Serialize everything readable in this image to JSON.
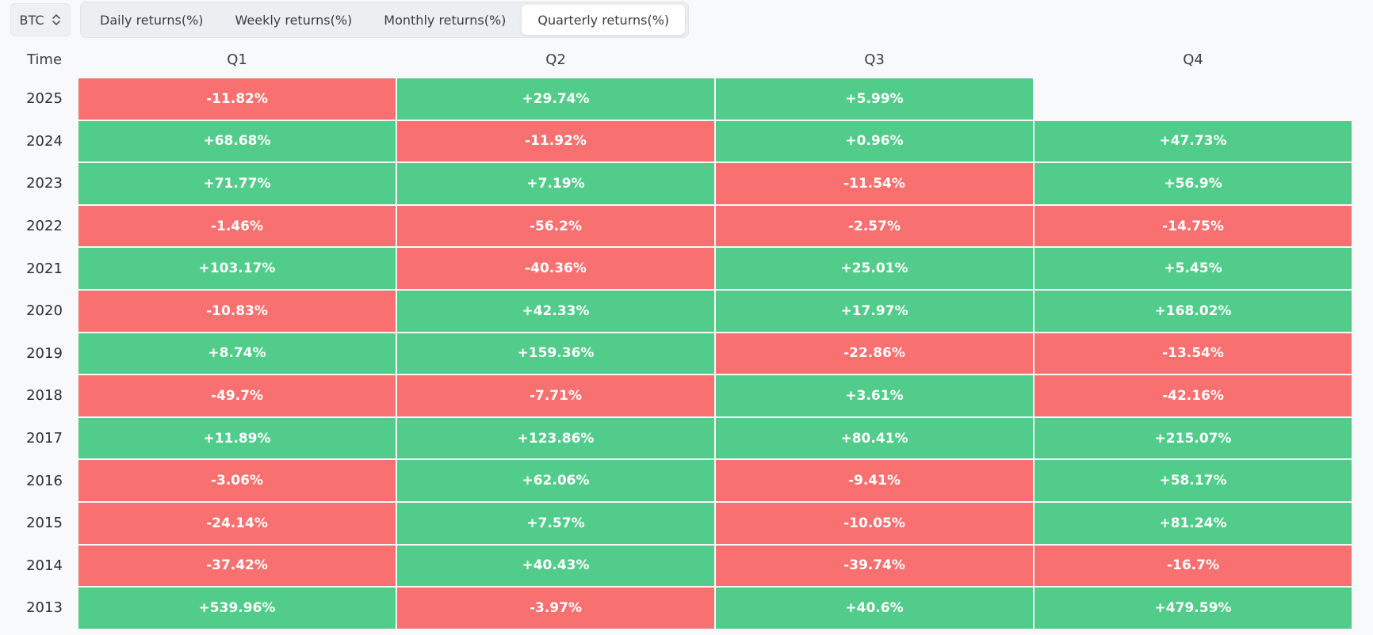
{
  "coin_selector": {
    "value": "BTC"
  },
  "tabs": [
    {
      "label": "Daily returns(%)",
      "active": false
    },
    {
      "label": "Weekly returns(%)",
      "active": false
    },
    {
      "label": "Monthly returns(%)",
      "active": false
    },
    {
      "label": "Quarterly returns(%)",
      "active": true
    }
  ],
  "colors": {
    "positive": "#52cc8a",
    "negative": "#f97070"
  },
  "table": {
    "columns": [
      "Time",
      "Q1",
      "Q2",
      "Q3",
      "Q4"
    ],
    "rows": [
      {
        "year": "2025",
        "values": [
          "-11.82%",
          "+29.74%",
          "+5.99%",
          ""
        ]
      },
      {
        "year": "2024",
        "values": [
          "+68.68%",
          "-11.92%",
          "+0.96%",
          "+47.73%"
        ]
      },
      {
        "year": "2023",
        "values": [
          "+71.77%",
          "+7.19%",
          "-11.54%",
          "+56.9%"
        ]
      },
      {
        "year": "2022",
        "values": [
          "-1.46%",
          "-56.2%",
          "-2.57%",
          "-14.75%"
        ]
      },
      {
        "year": "2021",
        "values": [
          "+103.17%",
          "-40.36%",
          "+25.01%",
          "+5.45%"
        ]
      },
      {
        "year": "2020",
        "values": [
          "-10.83%",
          "+42.33%",
          "+17.97%",
          "+168.02%"
        ]
      },
      {
        "year": "2019",
        "values": [
          "+8.74%",
          "+159.36%",
          "-22.86%",
          "-13.54%"
        ]
      },
      {
        "year": "2018",
        "values": [
          "-49.7%",
          "-7.71%",
          "+3.61%",
          "-42.16%"
        ]
      },
      {
        "year": "2017",
        "values": [
          "+11.89%",
          "+123.86%",
          "+80.41%",
          "+215.07%"
        ]
      },
      {
        "year": "2016",
        "values": [
          "-3.06%",
          "+62.06%",
          "-9.41%",
          "+58.17%"
        ]
      },
      {
        "year": "2015",
        "values": [
          "-24.14%",
          "+7.57%",
          "-10.05%",
          "+81.24%"
        ]
      },
      {
        "year": "2014",
        "values": [
          "-37.42%",
          "+40.43%",
          "-39.74%",
          "-16.7%"
        ]
      },
      {
        "year": "2013",
        "values": [
          "+539.96%",
          "-3.97%",
          "+40.6%",
          "+479.59%"
        ]
      }
    ]
  }
}
